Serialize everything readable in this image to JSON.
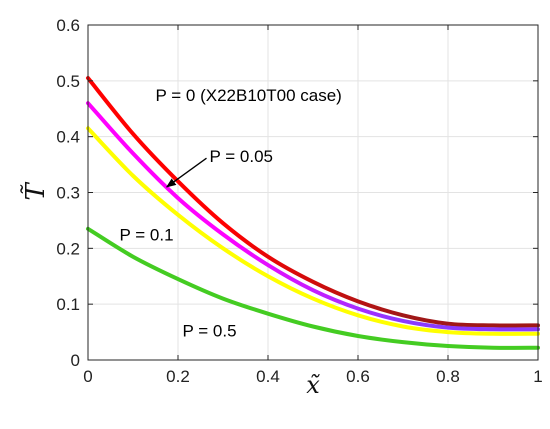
{
  "chart_data": {
    "type": "line",
    "xlabel": "x̃",
    "ylabel": "T̃",
    "xlim": [
      0,
      1
    ],
    "ylim": [
      0,
      0.6
    ],
    "xticks": [
      0,
      0.2,
      0.4,
      0.6,
      0.8,
      1
    ],
    "yticks": [
      0,
      0.1,
      0.2,
      0.3,
      0.4,
      0.5,
      0.6
    ],
    "xtick_labels": [
      "0",
      "0.2",
      "0.4",
      "0.6",
      "0.8",
      "1"
    ],
    "ytick_labels": [
      "0",
      "0.1",
      "0.2",
      "0.3",
      "0.4",
      "0.5",
      "0.6"
    ],
    "grid": true,
    "x": [
      0,
      0.1,
      0.2,
      0.3,
      0.4,
      0.5,
      0.6,
      0.7,
      0.8,
      0.9,
      1.0
    ],
    "series": [
      {
        "color": "#ff0000",
        "color_end": "#a01818",
        "values": [
          0.505,
          0.405,
          0.32,
          0.245,
          0.185,
          0.14,
          0.105,
          0.08,
          0.065,
          0.062,
          0.062
        ]
      },
      {
        "color": "#ff00ff",
        "color_end": "#8a3aff",
        "values": [
          0.46,
          0.37,
          0.29,
          0.225,
          0.17,
          0.125,
          0.092,
          0.07,
          0.058,
          0.055,
          0.055
        ]
      },
      {
        "color": "#ffff00",
        "values": [
          0.415,
          0.33,
          0.26,
          0.2,
          0.15,
          0.11,
          0.08,
          0.06,
          0.05,
          0.047,
          0.047
        ]
      },
      {
        "color": "#44cc22",
        "values": [
          0.235,
          0.185,
          0.145,
          0.11,
          0.083,
          0.06,
          0.043,
          0.032,
          0.025,
          0.022,
          0.022
        ]
      }
    ],
    "annotations": [
      {
        "text": "P = 0 (X22B10T00 case)",
        "x": 0.15,
        "y": 0.475
      },
      {
        "text": "P = 0.05",
        "x": 0.27,
        "y": 0.365,
        "arrow_to": [
          0.175,
          0.31
        ]
      },
      {
        "text": "P = 0.1",
        "x": 0.07,
        "y": 0.225
      },
      {
        "text": "P = 0.5",
        "x": 0.21,
        "y": 0.053
      }
    ]
  }
}
